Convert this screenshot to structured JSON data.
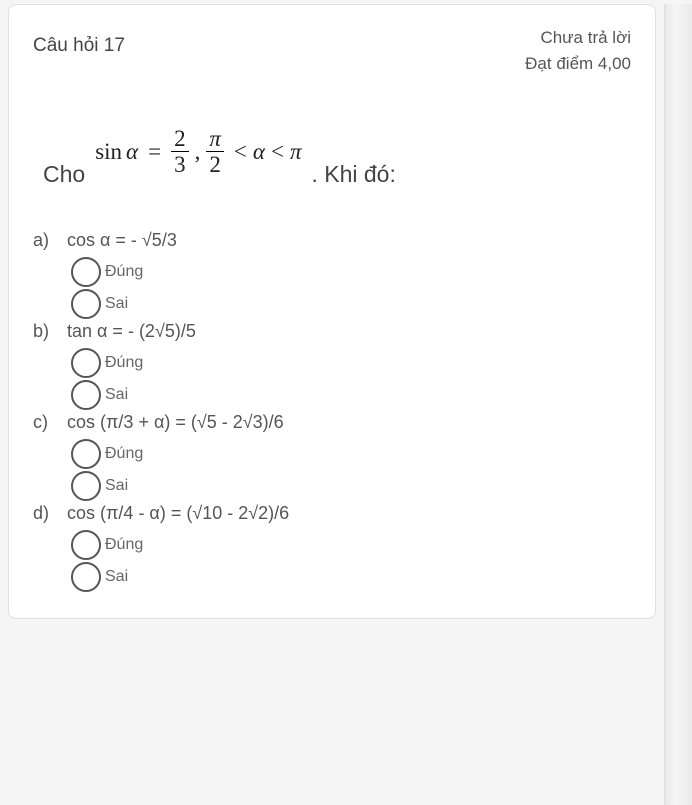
{
  "header": {
    "title": "Câu hỏi 17",
    "status": "Chưa trả lời",
    "points": "Đạt điểm 4,00"
  },
  "prompt": {
    "cho": "Cho",
    "sin_label": "sin",
    "alpha": "α",
    "eq": "=",
    "frac1_num": "2",
    "frac1_den": "3",
    "comma": ",",
    "frac2_num": "π",
    "frac2_den": "2",
    "lt1": "<",
    "alpha2": "α",
    "lt2": "<",
    "pi": "π",
    "khido": ". Khi đó:"
  },
  "radio_labels": {
    "true": "Đúng",
    "false": "Sai"
  },
  "options": [
    {
      "letter": "a)",
      "text": "cos α = - √5/3"
    },
    {
      "letter": "b)",
      "text": "tan α = - (2√5)/5"
    },
    {
      "letter": "c)",
      "text": "cos (π/3 + α) = (√5 - 2√3)/6"
    },
    {
      "letter": "d)",
      "text": "cos (π/4 - α) = (√10 - 2√2)/6"
    }
  ]
}
